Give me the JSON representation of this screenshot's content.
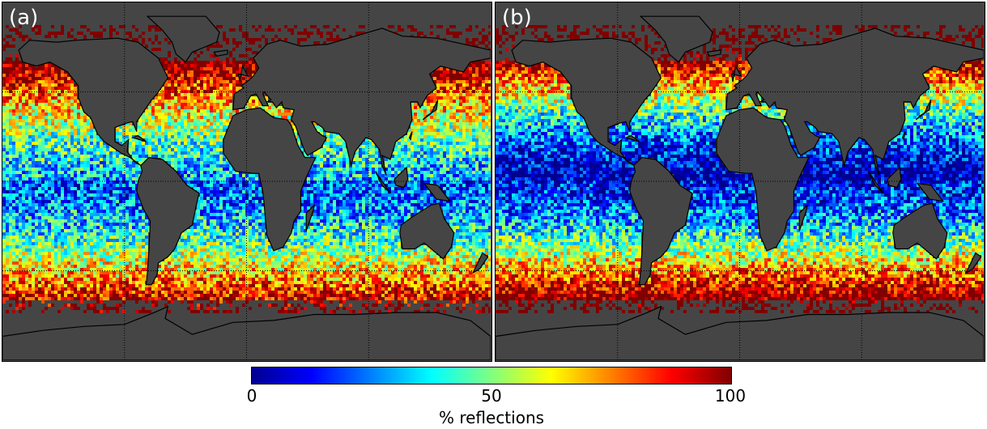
{
  "panels": [
    {
      "label": "(a)"
    },
    {
      "label": "(b)"
    }
  ],
  "colorbar": {
    "ticks": [
      "0",
      "50",
      "100"
    ],
    "label": "% reflections",
    "colormap": [
      "#00008f",
      "#0000ff",
      "#0080ff",
      "#00ffff",
      "#80ff80",
      "#ffff00",
      "#ff8000",
      "#ff0000",
      "#800000"
    ]
  },
  "colors": {
    "land": "#454545",
    "coast": "#000000",
    "grid": "#000000"
  }
}
